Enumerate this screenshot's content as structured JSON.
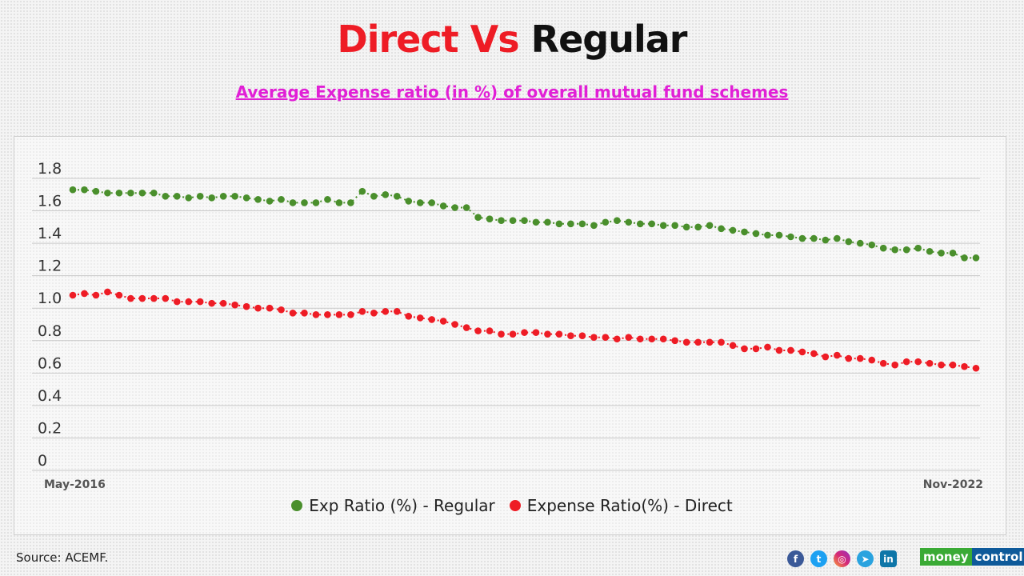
{
  "title": {
    "part1": "Direct Vs",
    "part2": "Regular"
  },
  "subtitle": "Average Expense ratio (in %) of overall mutual fund schemes",
  "source": "Source: ACEMF.",
  "logo": {
    "part1": "money",
    "part2": "control"
  },
  "social_icons": [
    "facebook-icon",
    "twitter-icon",
    "instagram-icon",
    "telegram-icon",
    "linkedin-icon"
  ],
  "chart_data": {
    "type": "line",
    "title": "Average Expense ratio (in %) of overall mutual fund schemes",
    "x_start": "May-2016",
    "x_end": "Nov-2022",
    "x_tick_labels": [
      "May-2016",
      "Nov-2022"
    ],
    "ylim": [
      0,
      1.8
    ],
    "y_ticks": [
      "0",
      "0.2",
      "0.4",
      "0.6",
      "0.8",
      "1.0",
      "1.2",
      "1.4",
      "1.6",
      "1.8"
    ],
    "grid": true,
    "legend": "bottom",
    "series": [
      {
        "name": "Exp Ratio (%) - Regular",
        "color": "#4a8f2c",
        "values": [
          1.73,
          1.73,
          1.72,
          1.71,
          1.71,
          1.71,
          1.71,
          1.71,
          1.69,
          1.69,
          1.68,
          1.69,
          1.68,
          1.69,
          1.69,
          1.68,
          1.67,
          1.66,
          1.67,
          1.65,
          1.65,
          1.65,
          1.67,
          1.65,
          1.65,
          1.72,
          1.69,
          1.7,
          1.69,
          1.66,
          1.65,
          1.65,
          1.63,
          1.62,
          1.62,
          1.56,
          1.55,
          1.54,
          1.54,
          1.54,
          1.53,
          1.53,
          1.52,
          1.52,
          1.52,
          1.51,
          1.53,
          1.54,
          1.53,
          1.52,
          1.52,
          1.51,
          1.51,
          1.5,
          1.5,
          1.51,
          1.49,
          1.48,
          1.47,
          1.46,
          1.45,
          1.45,
          1.44,
          1.43,
          1.43,
          1.42,
          1.43,
          1.41,
          1.4,
          1.39,
          1.37,
          1.36,
          1.36,
          1.37,
          1.35,
          1.34,
          1.34,
          1.31,
          1.31
        ]
      },
      {
        "name": "Expense Ratio(%) - Direct",
        "color": "#ee1c25",
        "values": [
          1.08,
          1.09,
          1.08,
          1.1,
          1.08,
          1.06,
          1.06,
          1.06,
          1.06,
          1.04,
          1.04,
          1.04,
          1.03,
          1.03,
          1.02,
          1.01,
          1.0,
          1.0,
          0.99,
          0.97,
          0.97,
          0.96,
          0.96,
          0.96,
          0.96,
          0.98,
          0.97,
          0.98,
          0.98,
          0.95,
          0.94,
          0.93,
          0.92,
          0.9,
          0.88,
          0.86,
          0.86,
          0.84,
          0.84,
          0.85,
          0.85,
          0.84,
          0.84,
          0.83,
          0.83,
          0.82,
          0.82,
          0.81,
          0.82,
          0.81,
          0.81,
          0.81,
          0.8,
          0.79,
          0.79,
          0.79,
          0.79,
          0.77,
          0.75,
          0.75,
          0.76,
          0.74,
          0.74,
          0.73,
          0.72,
          0.7,
          0.71,
          0.69,
          0.69,
          0.68,
          0.66,
          0.65,
          0.67,
          0.67,
          0.66,
          0.65,
          0.65,
          0.64,
          0.63
        ]
      }
    ]
  }
}
